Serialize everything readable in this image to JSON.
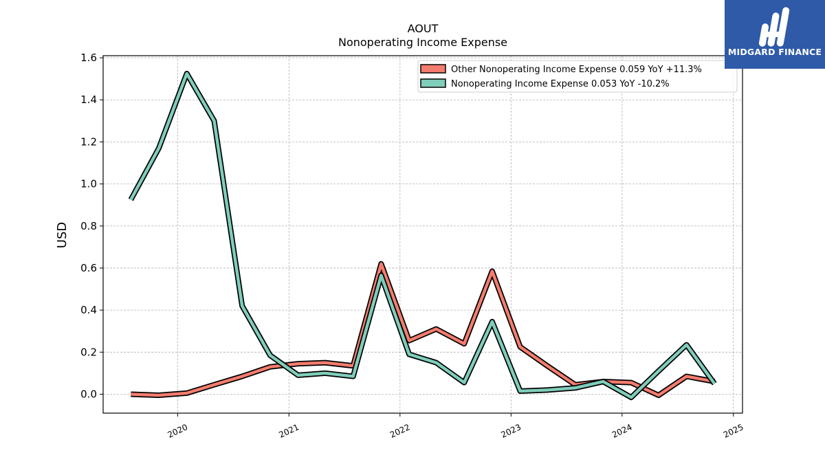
{
  "chart_data": {
    "type": "line",
    "title": "AOUT",
    "subtitle": "Nonoperating Income Expense",
    "ylabel": "USD",
    "xlabel": "",
    "ylim": [
      -0.09,
      1.61
    ],
    "xlim": [
      "2019-05-01",
      "2025-01-31"
    ],
    "yticks": [
      0.0,
      0.2,
      0.4,
      0.6,
      0.8,
      1.0,
      1.2,
      1.4,
      1.6
    ],
    "ytick_labels": [
      "0.0",
      "0.2",
      "0.4",
      "0.6",
      "0.8",
      "1.0",
      "1.2",
      "1.4",
      "1.6"
    ],
    "xticks": [
      "2020-01-01",
      "2021-01-01",
      "2022-01-01",
      "2023-01-01",
      "2024-01-01",
      "2025-01-01"
    ],
    "xtick_labels": [
      "2020",
      "2021",
      "2022",
      "2023",
      "2024",
      "2025"
    ],
    "grid": true,
    "legend_position": "top-right",
    "series": [
      {
        "name": "Other Nonoperating Income Expense  0.059 YoY +11.3%",
        "color": "#f47c6e",
        "points": [
          [
            "2019-07-31",
            0.0
          ],
          [
            "2019-10-31",
            -0.005
          ],
          [
            "2020-01-31",
            0.005
          ],
          [
            "2020-04-30",
            0.045
          ],
          [
            "2020-07-31",
            0.085
          ],
          [
            "2020-10-31",
            0.13
          ],
          [
            "2021-01-31",
            0.145
          ],
          [
            "2021-04-30",
            0.15
          ],
          [
            "2021-07-31",
            0.135
          ],
          [
            "2021-10-31",
            0.62
          ],
          [
            "2022-01-31",
            0.255
          ],
          [
            "2022-04-30",
            0.31
          ],
          [
            "2022-07-31",
            0.24
          ],
          [
            "2022-10-31",
            0.585
          ],
          [
            "2023-01-31",
            0.225
          ],
          [
            "2023-04-30",
            0.135
          ],
          [
            "2023-07-31",
            0.045
          ],
          [
            "2023-10-31",
            0.06
          ],
          [
            "2024-01-31",
            0.055
          ],
          [
            "2024-04-30",
            -0.005
          ],
          [
            "2024-07-31",
            0.085
          ],
          [
            "2024-10-31",
            0.06
          ]
        ]
      },
      {
        "name": "Nonoperating Income Expense  0.053 YoY -10.2%",
        "color": "#7fcdbb",
        "points": [
          [
            "2019-07-31",
            0.925
          ],
          [
            "2019-10-31",
            1.17
          ],
          [
            "2020-01-31",
            1.525
          ],
          [
            "2020-04-30",
            1.3
          ],
          [
            "2020-07-31",
            0.42
          ],
          [
            "2020-10-31",
            0.185
          ],
          [
            "2021-01-31",
            0.09
          ],
          [
            "2021-04-30",
            0.1
          ],
          [
            "2021-07-31",
            0.085
          ],
          [
            "2021-10-31",
            0.565
          ],
          [
            "2022-01-31",
            0.19
          ],
          [
            "2022-04-30",
            0.15
          ],
          [
            "2022-07-31",
            0.055
          ],
          [
            "2022-10-31",
            0.345
          ],
          [
            "2023-01-31",
            0.015
          ],
          [
            "2023-04-30",
            0.02
          ],
          [
            "2023-07-31",
            0.03
          ],
          [
            "2023-10-31",
            0.06
          ],
          [
            "2024-01-31",
            -0.015
          ],
          [
            "2024-04-30",
            0.11
          ],
          [
            "2024-07-31",
            0.235
          ],
          [
            "2024-10-31",
            0.05
          ]
        ]
      }
    ]
  },
  "logo": {
    "text": "MIDGARD FINANCE",
    "name": "midgard-finance-logo",
    "color": "#2e5aa8"
  }
}
